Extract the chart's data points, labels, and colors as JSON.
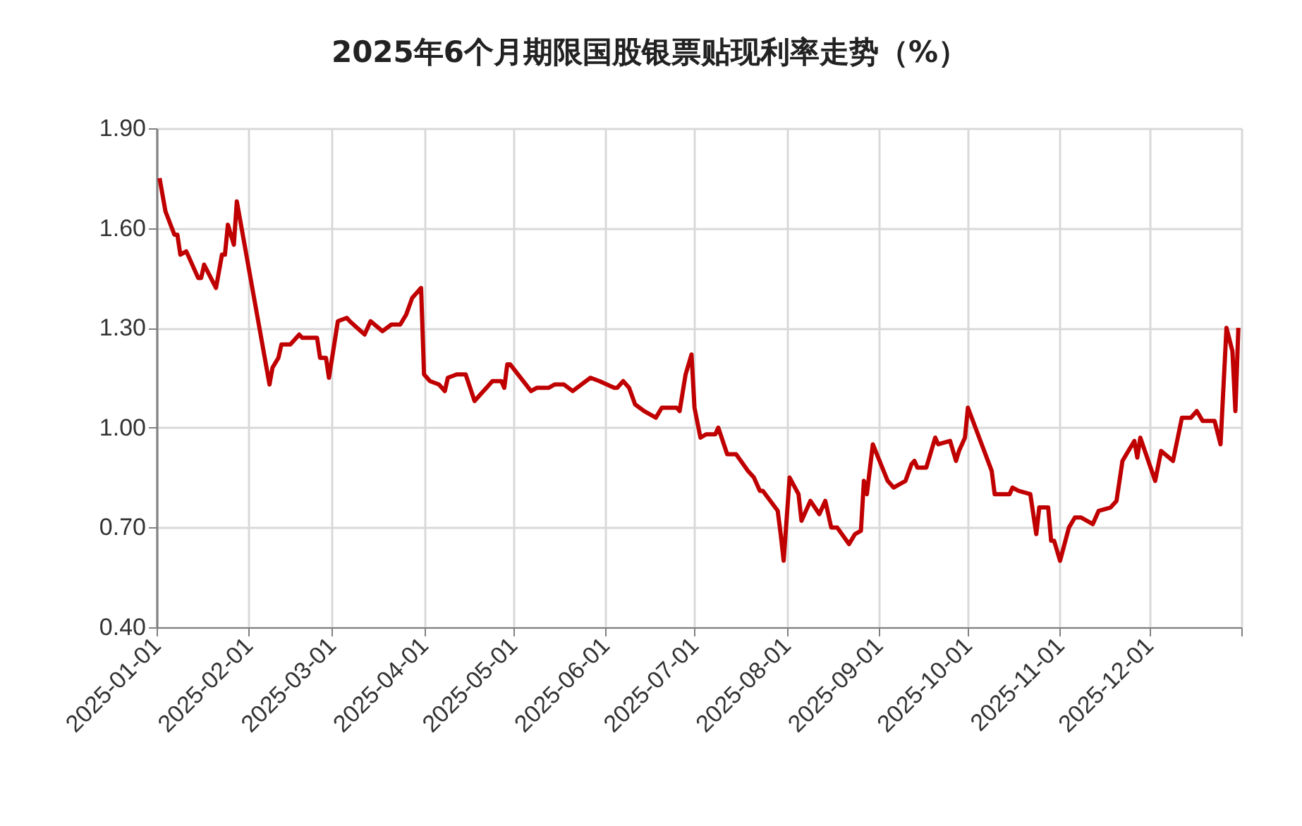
{
  "chart_data": {
    "type": "line",
    "title": "2025年6个月期限国股银票贴现利率走势（%）",
    "x": [
      "2025-01-02",
      "2025-01-04",
      "2025-01-07",
      "2025-01-08",
      "2025-01-09",
      "2025-01-11",
      "2025-01-15",
      "2025-01-16",
      "2025-01-17",
      "2025-01-21",
      "2025-01-23",
      "2025-01-24",
      "2025-01-25",
      "2025-01-27",
      "2025-01-28",
      "2025-02-08",
      "2025-02-09",
      "2025-02-11",
      "2025-02-12",
      "2025-02-15",
      "2025-02-18",
      "2025-02-19",
      "2025-02-24",
      "2025-02-25",
      "2025-02-27",
      "2025-02-28",
      "2025-03-03",
      "2025-03-06",
      "2025-03-07",
      "2025-03-12",
      "2025-03-14",
      "2025-03-18",
      "2025-03-21",
      "2025-03-24",
      "2025-03-26",
      "2025-03-28",
      "2025-03-31",
      "2025-04-01",
      "2025-04-03",
      "2025-04-06",
      "2025-04-08",
      "2025-04-09",
      "2025-04-12",
      "2025-04-15",
      "2025-04-18",
      "2025-04-20",
      "2025-04-22",
      "2025-04-24",
      "2025-04-27",
      "2025-04-28",
      "2025-04-29",
      "2025-04-30",
      "2025-05-07",
      "2025-05-09",
      "2025-05-13",
      "2025-05-15",
      "2025-05-18",
      "2025-05-21",
      "2025-05-24",
      "2025-05-27",
      "2025-05-30",
      "2025-06-04",
      "2025-06-05",
      "2025-06-07",
      "2025-06-09",
      "2025-06-11",
      "2025-06-14",
      "2025-06-18",
      "2025-06-20",
      "2025-06-25",
      "2025-06-26",
      "2025-06-28",
      "2025-06-30",
      "2025-07-01",
      "2025-07-03",
      "2025-07-05",
      "2025-07-08",
      "2025-07-09",
      "2025-07-12",
      "2025-07-15",
      "2025-07-19",
      "2025-07-21",
      "2025-07-23",
      "2025-07-24",
      "2025-07-29",
      "2025-07-30",
      "2025-07-31",
      "2025-08-02",
      "2025-08-05",
      "2025-08-06",
      "2025-08-09",
      "2025-08-12",
      "2025-08-14",
      "2025-08-16",
      "2025-08-18",
      "2025-08-22",
      "2025-08-24",
      "2025-08-26",
      "2025-08-27",
      "2025-08-28",
      "2025-08-30",
      "2025-09-04",
      "2025-09-06",
      "2025-09-10",
      "2025-09-12",
      "2025-09-13",
      "2025-09-14",
      "2025-09-17",
      "2025-09-20",
      "2025-09-21",
      "2025-09-25",
      "2025-09-27",
      "2025-09-28",
      "2025-09-30",
      "2025-10-01",
      "2025-10-09",
      "2025-10-10",
      "2025-10-15",
      "2025-10-16",
      "2025-10-18",
      "2025-10-22",
      "2025-10-24",
      "2025-10-25",
      "2025-10-28",
      "2025-10-29",
      "2025-10-30",
      "2025-11-01",
      "2025-11-04",
      "2025-11-06",
      "2025-11-08",
      "2025-11-12",
      "2025-11-14",
      "2025-11-18",
      "2025-11-20",
      "2025-11-22",
      "2025-11-24",
      "2025-11-26",
      "2025-11-27",
      "2025-11-28",
      "2025-12-03",
      "2025-12-05",
      "2025-12-09",
      "2025-12-12",
      "2025-12-15",
      "2025-12-17",
      "2025-12-19",
      "2025-12-23",
      "2025-12-25",
      "2025-12-27",
      "2025-12-29",
      "2025-12-30",
      "2025-12-31"
    ],
    "series": [
      {
        "color": "#c00000",
        "values": [
          1.75,
          1.65,
          1.58,
          1.58,
          1.52,
          1.53,
          1.45,
          1.45,
          1.49,
          1.42,
          1.52,
          1.52,
          1.61,
          1.55,
          1.68,
          1.13,
          1.18,
          1.21,
          1.25,
          1.25,
          1.28,
          1.27,
          1.27,
          1.21,
          1.21,
          1.15,
          1.32,
          1.33,
          1.32,
          1.28,
          1.32,
          1.29,
          1.31,
          1.31,
          1.34,
          1.39,
          1.42,
          1.16,
          1.14,
          1.13,
          1.11,
          1.15,
          1.16,
          1.16,
          1.08,
          1.1,
          1.12,
          1.14,
          1.14,
          1.12,
          1.19,
          1.19,
          1.11,
          1.12,
          1.12,
          1.13,
          1.13,
          1.11,
          1.13,
          1.15,
          1.14,
          1.12,
          1.12,
          1.14,
          1.12,
          1.07,
          1.05,
          1.03,
          1.06,
          1.06,
          1.05,
          1.16,
          1.22,
          1.06,
          0.97,
          0.98,
          0.98,
          1.0,
          0.92,
          0.92,
          0.87,
          0.85,
          0.81,
          0.81,
          0.75,
          0.68,
          0.6,
          0.85,
          0.8,
          0.72,
          0.78,
          0.74,
          0.78,
          0.7,
          0.7,
          0.65,
          0.68,
          0.69,
          0.84,
          0.8,
          0.95,
          0.84,
          0.82,
          0.84,
          0.89,
          0.9,
          0.88,
          0.88,
          0.97,
          0.95,
          0.96,
          0.9,
          0.93,
          0.97,
          1.06,
          0.87,
          0.8,
          0.8,
          0.82,
          0.81,
          0.8,
          0.68,
          0.76,
          0.76,
          0.66,
          0.66,
          0.6,
          0.7,
          0.73,
          0.73,
          0.71,
          0.75,
          0.76,
          0.78,
          0.9,
          0.93,
          0.96,
          0.91,
          0.97,
          0.84,
          0.93,
          0.9,
          1.03,
          1.03,
          1.05,
          1.02,
          1.02,
          0.95,
          1.3,
          1.23,
          1.05,
          1.3
        ]
      }
    ],
    "xlim": [
      "2025-01-01",
      "2026-01-01"
    ],
    "xticks": [
      "2025-01-01",
      "2025-02-01",
      "2025-03-01",
      "2025-04-01",
      "2025-05-01",
      "2025-06-01",
      "2025-07-01",
      "2025-08-01",
      "2025-09-01",
      "2025-10-01",
      "2025-11-01",
      "2025-12-01",
      {
        "value": "2026-01-01",
        "label": null
      }
    ],
    "ylim": [
      0.4,
      1.9
    ],
    "yticks": [
      {
        "value": 0.4,
        "label": "0.40"
      },
      {
        "value": 0.7,
        "label": "0.70"
      },
      {
        "value": 1.0,
        "label": "1.00"
      },
      {
        "value": 1.3,
        "label": "1.30"
      },
      {
        "value": 1.6,
        "label": "1.60"
      },
      {
        "value": 1.9,
        "label": "1.90"
      }
    ],
    "grid": true,
    "marker": "none",
    "line_style": "solid"
  }
}
